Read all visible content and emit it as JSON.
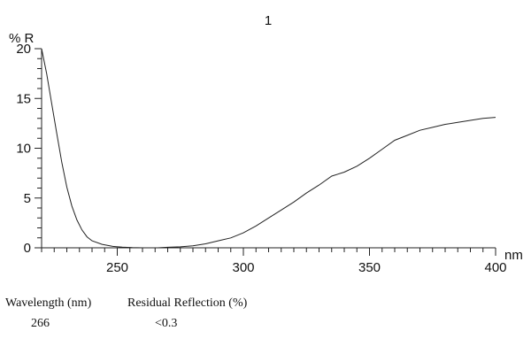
{
  "chart_data": {
    "type": "line",
    "title": "1",
    "ylabel": "% R",
    "xlabel": "nm",
    "xlim": [
      220,
      400
    ],
    "ylim": [
      0,
      20
    ],
    "x_ticks": [
      250,
      300,
      350,
      400
    ],
    "y_ticks": [
      0,
      5,
      10,
      15,
      20
    ],
    "grid": false,
    "series": [
      {
        "x": [
          220,
          222,
          224,
          226,
          228,
          230,
          232,
          234,
          236,
          238,
          240,
          244,
          248,
          252,
          256,
          260,
          266,
          270,
          275,
          280,
          285,
          290,
          295,
          300,
          305,
          310,
          315,
          320,
          325,
          330,
          335,
          340,
          345,
          350,
          355,
          360,
          365,
          370,
          375,
          380,
          385,
          390,
          395,
          400
        ],
        "y": [
          20.0,
          17.5,
          14.5,
          11.5,
          8.6,
          6.1,
          4.2,
          2.8,
          1.8,
          1.1,
          0.7,
          0.35,
          0.15,
          0.06,
          0.02,
          0.0,
          0.0,
          0.05,
          0.1,
          0.2,
          0.4,
          0.7,
          1.0,
          1.5,
          2.2,
          3.0,
          3.8,
          4.6,
          5.5,
          6.3,
          7.2,
          7.6,
          8.2,
          9.0,
          9.9,
          10.8,
          11.3,
          11.8,
          12.1,
          12.4,
          12.6,
          12.8,
          13.0,
          13.1
        ]
      }
    ]
  },
  "info": {
    "wavelength_label": "Wavelength (nm)",
    "wavelength_value": "266",
    "reflection_label": "Residual Reflection (%)",
    "reflection_value": "<0.3"
  }
}
